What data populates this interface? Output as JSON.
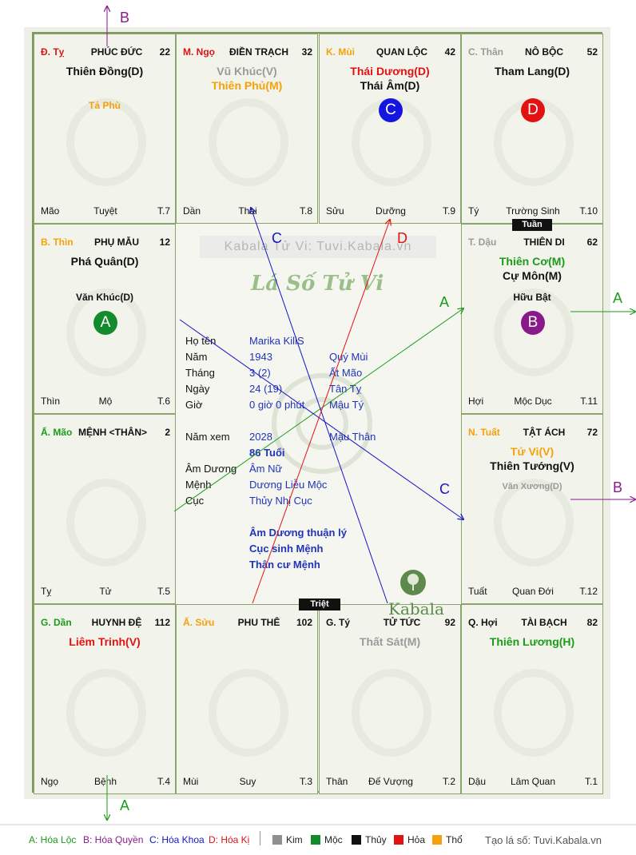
{
  "colors": {
    "kim": "#8f8f8f",
    "moc": "#128b2c",
    "thuy": "#111111",
    "hoa": "#e31212",
    "tho": "#f5a10b",
    "loc": "#1a9b1a",
    "quyen": "#8a1a8a",
    "khoa": "#1515c8",
    "ki": "#d81515"
  },
  "cells": {
    "ty_top": {
      "branch": "Đ. Tỵ",
      "pname": "PHÚC ĐỨC",
      "num": "22",
      "star1": "Thiên Đồng(D)",
      "minor": "Tả Phù",
      "foot1": "Mão",
      "foot2": "Tuyệt",
      "foot3": "T.7"
    },
    "ngo": {
      "branch": "M. Ngọ",
      "pname": "ĐIỀN TRẠCH",
      "num": "32",
      "star1": "Vũ Khúc(V)",
      "star2": "Thiên Phủ(M)",
      "foot1": "Dần",
      "foot2": "Thai",
      "foot3": "T.8"
    },
    "mui": {
      "branch": "K. Mùi",
      "pname": "QUAN LỘC",
      "num": "42",
      "star1": "Thái Dương(D)",
      "star2": "Thái Âm(D)",
      "badge": "C",
      "foot1": "Sửu",
      "foot2": "Dưỡng",
      "foot3": "T.9"
    },
    "than": {
      "branch": "C. Thân",
      "pname": "NÔ BỘC",
      "num": "52",
      "star1": "Tham Lang(D)",
      "badge": "D",
      "foot1": "Tý",
      "foot2": "Trường Sinh",
      "foot3": "T.10"
    },
    "thin": {
      "branch": "B. Thìn",
      "pname": "PHỤ MẪU",
      "num": "12",
      "star1": "Phá Quân(D)",
      "minor": "Văn Khúc(D)",
      "badge": "A",
      "foot1": "Thìn",
      "foot2": "Mộ",
      "foot3": "T.6"
    },
    "dau": {
      "branch": "T. Dậu",
      "pname": "THIÊN DI",
      "num": "62",
      "star1": "Thiên Cơ(M)",
      "star2": "Cự Môn(M)",
      "minor": "Hữu Bật",
      "badge": "B",
      "foot1": "Hợi",
      "foot2": "Mộc Dục",
      "foot3": "T.11"
    },
    "mao": {
      "branch": "Ấ. Mão",
      "pname": "MỆNH <THÂN>",
      "num": "2",
      "foot1": "Tỵ",
      "foot2": "Tử",
      "foot3": "T.5"
    },
    "tuat": {
      "branch": "N. Tuất",
      "pname": "TẬT ÁCH",
      "num": "72",
      "star1": "Tử Vi(V)",
      "star2": "Thiên Tướng(V)",
      "minor": "Văn Xương(D)",
      "foot1": "Tuất",
      "foot2": "Quan Đới",
      "foot3": "T.12"
    },
    "dan": {
      "branch": "G. Dần",
      "pname": "HUYNH ĐỆ",
      "num": "112",
      "star1": "Liêm Trinh(V)",
      "foot1": "Ngọ",
      "foot2": "Bệnh",
      "foot3": "T.4"
    },
    "suu": {
      "branch": "Ấ. Sửu",
      "pname": "PHU THÊ",
      "num": "102",
      "foot1": "Mùi",
      "foot2": "Suy",
      "foot3": "T.3"
    },
    "ty_bot": {
      "branch": "G. Tý",
      "pname": "TỬ TỨC",
      "num": "92",
      "star1": "Thất Sát(M)",
      "foot1": "Thân",
      "foot2": "Đế Vượng",
      "foot3": "T.2"
    },
    "hoi": {
      "branch": "Q. Hợi",
      "pname": "TÀI BẠCH",
      "num": "82",
      "star1": "Thiên Lương(H)",
      "foot1": "Dậu",
      "foot2": "Lâm Quan",
      "foot3": "T.1"
    }
  },
  "center": {
    "site_title": "Kabala Tử Vi: Tuvi.Kabala.vn",
    "logo_text": "Lá Số Tử Vi",
    "brand": "Kabala",
    "rows": [
      {
        "label": "Họ tên",
        "v1": "Marika KiliS",
        "v2": ""
      },
      {
        "label": "Năm",
        "v1": "1943",
        "v2": "Quý Mùi"
      },
      {
        "label": "Tháng",
        "v1": "3  (2)",
        "v2": "Ất Mão"
      },
      {
        "label": "Ngày",
        "v1": "24  (19)",
        "v2": "Tân Tỵ"
      },
      {
        "label": "Giờ",
        "v1": "0 giờ 0 phút",
        "v2": "Mậu Tý"
      }
    ],
    "year_view": {
      "label": "Năm xem",
      "v1": "2028",
      "v2": "Mậu Thân",
      "age": "86 Tuổi"
    },
    "rows2": [
      {
        "label": "Âm Dương",
        "v1": "Âm Nữ"
      },
      {
        "label": "Mệnh",
        "v1": "Dương Liễu Mộc"
      },
      {
        "label": "Cục",
        "v1": "Thủy Nhị Cục"
      }
    ],
    "notes": [
      "Âm Dương thuận lý",
      "Cục sinh Mệnh",
      "Thân cư Mệnh"
    ]
  },
  "tags": {
    "tuan": "Tuần",
    "triet": "Triệt"
  },
  "arrows": {
    "a": "A",
    "b": "B",
    "c": "C",
    "d": "D"
  },
  "legend": {
    "loc": "A: Hóa Lộc",
    "quyen": "B: Hóa Quyền",
    "khoa": "C: Hóa Khoa",
    "ki": "D: Hóa Kị",
    "kim": "Kim",
    "moc": "Mộc",
    "thuy": "Thủy",
    "hoa": "Hỏa",
    "tho": "Thổ",
    "site": "Tạo lá số: Tuvi.Kabala.vn"
  }
}
